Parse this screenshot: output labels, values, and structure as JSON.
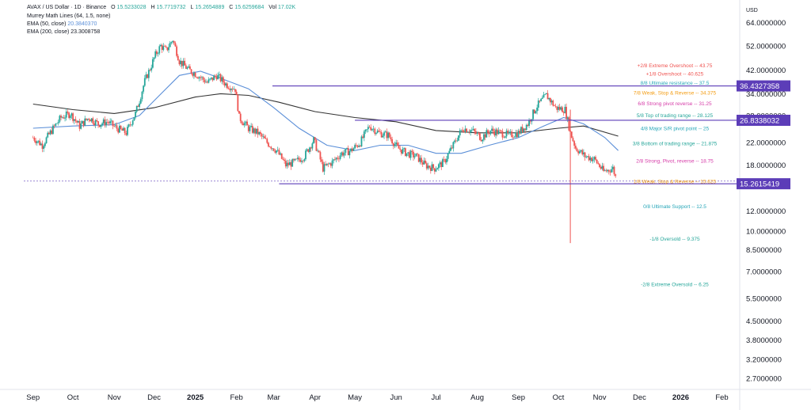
{
  "header": {
    "symbol_line": {
      "label": "AVAX / US Dollar · 1D · Binance",
      "o_label": "O",
      "o_value": "15.5233028",
      "h_label": "H",
      "h_value": "15.7719732",
      "l_label": "L",
      "l_value": "15.2654889",
      "c_label": "C",
      "c_value": "15.6259684",
      "vol_label": "Vol",
      "vol_value": "17.02K"
    },
    "murrey_line": "Murrey Math Lines (64, 1.5, none)",
    "ema50": {
      "label": "EMA (50, close)",
      "value": "20.3840370",
      "color": "#5b8fd8"
    },
    "ema200": {
      "label": "EMA (200, close)",
      "value": "23.3008758",
      "color": "#131722"
    },
    "currency": "USD"
  },
  "colors": {
    "up": "#26a69a",
    "down": "#ef5350",
    "ema50": "#5b8fd8",
    "ema200": "#333333",
    "level_line": "#5c3db8",
    "price_tag": "#5c3db8",
    "crash_wick": "#ef5350"
  },
  "chart_data": {
    "type": "candlestick",
    "title": "AVAX / US Dollar · 1D · Binance",
    "x_axis": {
      "type": "time",
      "ticks": [
        "Sep",
        "Oct",
        "Nov",
        "Dec",
        "2025",
        "Feb",
        "Mar",
        "Apr",
        "May",
        "Jun",
        "Jul",
        "Aug",
        "Sep",
        "Oct",
        "Nov",
        "Dec",
        "2026",
        "Feb"
      ],
      "tick_dates": [
        "2024-09-01",
        "2024-10-01",
        "2024-11-01",
        "2024-12-01",
        "2025-01-01",
        "2025-02-01",
        "2025-03-01",
        "2025-04-01",
        "2025-05-01",
        "2025-06-01",
        "2025-07-01",
        "2025-08-01",
        "2025-09-01",
        "2025-10-01",
        "2025-11-01",
        "2025-12-01",
        "2026-01-01",
        "2026-02-01"
      ],
      "range": [
        "2024-08-25",
        "2026-02-12"
      ]
    },
    "y_axis": {
      "scale": "log",
      "range": [
        2.45,
        67
      ],
      "ticks": [
        "64.0000000",
        "52.0000000",
        "42.0000000",
        "34.0000000",
        "28.0000000",
        "22.0000000",
        "18.0000000",
        "15.0000000",
        "12.0000000",
        "10.0000000",
        "8.5000000",
        "7.0000000",
        "5.5000000",
        "4.5000000",
        "3.8000000",
        "3.2000000",
        "2.7000000"
      ],
      "tick_values": [
        64,
        52,
        42,
        34,
        28,
        22,
        18,
        15,
        12,
        10,
        8.5,
        7,
        5.5,
        4.5,
        3.8,
        3.2,
        2.7
      ]
    },
    "price_closes": [
      [
        "2024-09-01",
        23.0
      ],
      [
        "2024-09-08",
        21.5
      ],
      [
        "2024-09-15",
        24.5
      ],
      [
        "2024-09-22",
        27.5
      ],
      [
        "2024-09-29",
        28.5
      ],
      [
        "2024-10-06",
        25.5
      ],
      [
        "2024-10-13",
        27.5
      ],
      [
        "2024-10-20",
        26.0
      ],
      [
        "2024-10-27",
        26.5
      ],
      [
        "2024-11-03",
        25.0
      ],
      [
        "2024-11-10",
        24.0
      ],
      [
        "2024-11-17",
        28.5
      ],
      [
        "2024-11-20",
        32.0
      ],
      [
        "2024-11-24",
        38.0
      ],
      [
        "2024-11-28",
        42.5
      ],
      [
        "2024-12-02",
        48.0
      ],
      [
        "2024-12-06",
        52.0
      ],
      [
        "2024-12-10",
        50.0
      ],
      [
        "2024-12-15",
        55.0
      ],
      [
        "2024-12-20",
        45.5
      ],
      [
        "2024-12-27",
        42.0
      ],
      [
        "2025-01-03",
        40.0
      ],
      [
        "2025-01-10",
        37.5
      ],
      [
        "2025-01-17",
        40.0
      ],
      [
        "2025-01-24",
        37.0
      ],
      [
        "2025-01-31",
        35.5
      ],
      [
        "2025-02-03",
        27.5
      ],
      [
        "2025-02-10",
        25.0
      ],
      [
        "2025-02-17",
        24.0
      ],
      [
        "2025-02-24",
        22.0
      ],
      [
        "2025-03-03",
        20.5
      ],
      [
        "2025-03-10",
        18.0
      ],
      [
        "2025-03-17",
        18.5
      ],
      [
        "2025-03-24",
        19.5
      ],
      [
        "2025-03-31",
        22.5
      ],
      [
        "2025-04-07",
        17.5
      ],
      [
        "2025-04-14",
        18.5
      ],
      [
        "2025-04-21",
        20.0
      ],
      [
        "2025-04-28",
        20.5
      ],
      [
        "2025-05-05",
        22.0
      ],
      [
        "2025-05-12",
        25.5
      ],
      [
        "2025-05-19",
        24.0
      ],
      [
        "2025-05-26",
        23.5
      ],
      [
        "2025-06-02",
        21.0
      ],
      [
        "2025-06-09",
        20.0
      ],
      [
        "2025-06-16",
        19.5
      ],
      [
        "2025-06-23",
        18.0
      ],
      [
        "2025-06-30",
        17.5
      ],
      [
        "2025-07-07",
        18.5
      ],
      [
        "2025-07-14",
        21.5
      ],
      [
        "2025-07-21",
        25.0
      ],
      [
        "2025-07-28",
        24.5
      ],
      [
        "2025-08-04",
        23.0
      ],
      [
        "2025-08-11",
        24.5
      ],
      [
        "2025-08-18",
        24.0
      ],
      [
        "2025-08-25",
        23.5
      ],
      [
        "2025-09-01",
        24.0
      ],
      [
        "2025-09-08",
        26.0
      ],
      [
        "2025-09-15",
        30.5
      ],
      [
        "2025-09-22",
        33.5
      ],
      [
        "2025-09-29",
        30.0
      ],
      [
        "2025-10-06",
        29.5
      ],
      [
        "2025-10-10",
        24.0
      ],
      [
        "2025-10-14",
        21.0
      ],
      [
        "2025-10-21",
        19.5
      ],
      [
        "2025-10-28",
        19.0
      ],
      [
        "2025-11-04",
        17.0
      ],
      [
        "2025-11-11",
        17.5
      ],
      [
        "2025-11-14",
        15.6
      ]
    ],
    "crash_wick": {
      "date": "2025-10-10",
      "high": 29.5,
      "low": 9.0
    },
    "ema50": [
      [
        "2024-09-01",
        25.0
      ],
      [
        "2024-10-01",
        25.5
      ],
      [
        "2024-11-01",
        25.8
      ],
      [
        "2024-11-20",
        28.0
      ],
      [
        "2024-12-05",
        33.5
      ],
      [
        "2024-12-20",
        40.0
      ],
      [
        "2025-01-05",
        41.5
      ],
      [
        "2025-01-20",
        39.0
      ],
      [
        "2025-02-10",
        35.5
      ],
      [
        "2025-03-01",
        30.0
      ],
      [
        "2025-03-20",
        25.0
      ],
      [
        "2025-04-10",
        21.5
      ],
      [
        "2025-05-01",
        20.5
      ],
      [
        "2025-05-20",
        21.5
      ],
      [
        "2025-06-10",
        21.5
      ],
      [
        "2025-07-01",
        20.0
      ],
      [
        "2025-07-20",
        20.0
      ],
      [
        "2025-08-10",
        21.5
      ],
      [
        "2025-09-01",
        23.0
      ],
      [
        "2025-09-20",
        25.5
      ],
      [
        "2025-10-05",
        27.5
      ],
      [
        "2025-10-20",
        26.0
      ],
      [
        "2025-11-05",
        23.0
      ],
      [
        "2025-11-15",
        20.5
      ]
    ],
    "ema200": [
      [
        "2024-09-01",
        31.0
      ],
      [
        "2024-10-01",
        29.5
      ],
      [
        "2024-11-01",
        28.5
      ],
      [
        "2024-12-01",
        30.0
      ],
      [
        "2025-01-01",
        33.0
      ],
      [
        "2025-01-20",
        34.0
      ],
      [
        "2025-02-10",
        33.5
      ],
      [
        "2025-03-05",
        31.5
      ],
      [
        "2025-04-01",
        29.0
      ],
      [
        "2025-05-01",
        27.5
      ],
      [
        "2025-06-01",
        26.5
      ],
      [
        "2025-07-01",
        24.5
      ],
      [
        "2025-08-01",
        24.0
      ],
      [
        "2025-09-01",
        24.0
      ],
      [
        "2025-10-01",
        25.0
      ],
      [
        "2025-10-20",
        25.5
      ],
      [
        "2025-11-15",
        23.3
      ]
    ],
    "horizontal_lines": [
      {
        "price": 36.4327358,
        "start": "2025-02-28",
        "label": "36.4327358"
      },
      {
        "price": 26.8338032,
        "start": "2025-05-01",
        "label": "26.8338032"
      },
      {
        "price": 15.2615419,
        "start": "2025-03-05",
        "label": "15.2615419"
      }
    ],
    "murrey_levels": [
      {
        "label": "+2/8 Extreme Overshoot",
        "value": "43.75",
        "price": 43.75,
        "color": "#ef5350"
      },
      {
        "label": "+1/8 Overshoot",
        "value": "40.625",
        "price": 40.625,
        "color": "#ef5350"
      },
      {
        "label": "8/8 Ultimate resistance",
        "value": "37.5",
        "price": 37.5,
        "color": "#26a6b8"
      },
      {
        "label": "7/8 Weak, Stop & Reverse",
        "value": "34.375",
        "price": 34.375,
        "color": "#f39c12"
      },
      {
        "label": "6/8 Strong pivot reverse",
        "value": "31.25",
        "price": 31.25,
        "color": "#d63ca8"
      },
      {
        "label": "5/8 Top of trading range",
        "value": "28.125",
        "price": 28.125,
        "color": "#26a69a"
      },
      {
        "label": "4/8 Major S/R pivot point",
        "value": "25",
        "price": 25,
        "color": "#26a6b8"
      },
      {
        "label": "3/8 Bottom of trading range",
        "value": "21.875",
        "price": 21.875,
        "color": "#26a69a"
      },
      {
        "label": "2/8 Strong, Pivot, reverse",
        "value": "18.75",
        "price": 18.75,
        "color": "#d63ca8"
      },
      {
        "label": "1/8 Weak, Stop & Reverse",
        "value": "15.625",
        "price": 15.625,
        "color": "#f39c12"
      },
      {
        "label": "0/8 Ultimate Support",
        "value": "12.5",
        "price": 12.5,
        "color": "#26a6b8"
      },
      {
        "label": "-1/8 Oversold",
        "value": "9.375",
        "price": 9.375,
        "color": "#26a69a"
      },
      {
        "label": "-2/8 Extreme Oversold",
        "value": "6.25",
        "price": 6.25,
        "color": "#26a69a"
      }
    ]
  }
}
